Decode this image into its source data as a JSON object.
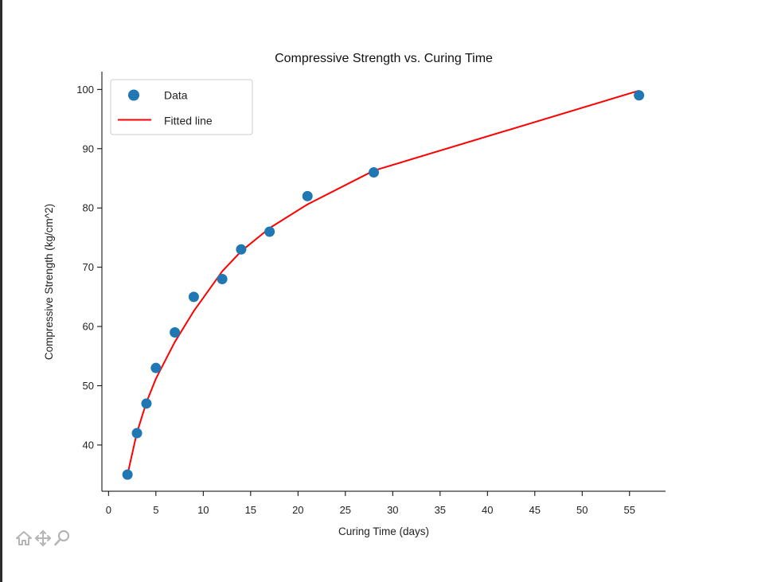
{
  "chart_data": {
    "type": "scatter",
    "title": "Compressive Strength vs. Curing Time",
    "xlabel": "Curing Time (days)",
    "ylabel": "Compressive Strength (kg/cm^2)",
    "xlim": [
      -0.7,
      58.8
    ],
    "ylim": [
      32.2,
      103.0
    ],
    "xticks": [
      0,
      5,
      10,
      15,
      20,
      25,
      30,
      35,
      40,
      45,
      50,
      55
    ],
    "yticks": [
      40,
      50,
      60,
      70,
      80,
      90,
      100
    ],
    "grid": false,
    "legend_position": "top-left",
    "series": [
      {
        "name": "Data",
        "kind": "scatter",
        "color": "#1f77b4",
        "x": [
          2,
          3,
          4,
          5,
          7,
          9,
          12,
          14,
          17,
          21,
          28,
          56
        ],
        "y": [
          35,
          42,
          47,
          53,
          59,
          65,
          68,
          73,
          76,
          82,
          86,
          99
        ]
      },
      {
        "name": "Fitted line",
        "kind": "line",
        "color": "#ff0000",
        "x": [
          2,
          3,
          4,
          5,
          7,
          9,
          12,
          14,
          17,
          21,
          28,
          56
        ],
        "y": [
          35.0,
          42.1,
          47.2,
          51.2,
          57.4,
          62.6,
          69.3,
          72.7,
          76.6,
          80.6,
          86.3,
          99.8
        ]
      }
    ]
  },
  "toolbar": {
    "home_icon": "home-icon",
    "pan_icon": "move-arrows-icon",
    "zoom_icon": "magnifier-icon"
  }
}
